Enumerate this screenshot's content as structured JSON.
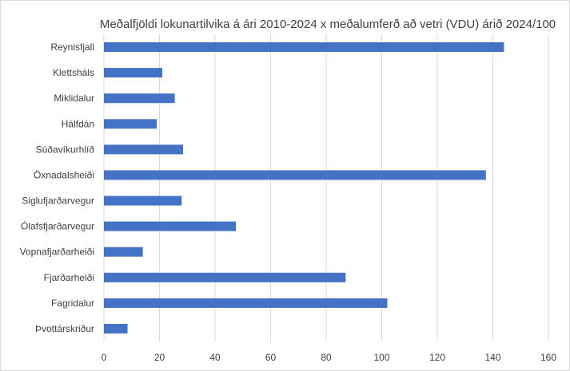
{
  "chart_data": {
    "type": "bar",
    "orientation": "horizontal",
    "title": "Meðalfjöldi lokunartilvika á ári 2010-2024 x meðalumferð að vetri (VDU) árið 2024/100",
    "xlabel": "",
    "ylabel": "",
    "xlim": [
      0,
      160
    ],
    "xticks": [
      0,
      20,
      40,
      60,
      80,
      100,
      120,
      140,
      160
    ],
    "grid": "vertical",
    "legend": "none",
    "color": "#4472c4",
    "categories": [
      "Reynisfjall",
      "Klettsháls",
      "Miklidalur",
      "Hálfdán",
      "Súðavíkurhlíð",
      "Öxnadalsheiði",
      "Siglufjarðarvegur",
      "Ólafsfjarðarvegur",
      "Vopnafjarðarheiði",
      "Fjarðarheiði",
      "Fagridalur",
      "Þvottárskriður"
    ],
    "values": [
      144,
      21,
      25.5,
      19,
      28.5,
      137.5,
      28,
      47.5,
      14,
      87,
      102,
      8.5
    ]
  }
}
